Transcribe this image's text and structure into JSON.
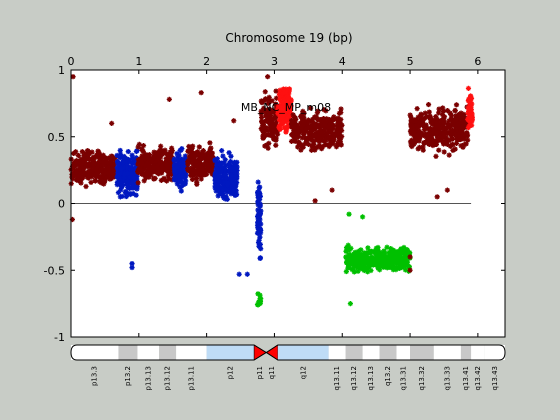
{
  "chart_data": {
    "type": "scatter",
    "title": "Chromosome 19 (bp)",
    "annotation": "MB_NC_MP_m08",
    "xlabel": "",
    "ylabel": "",
    "xlim": [
      0,
      6.4
    ],
    "ylim": [
      -1,
      1
    ],
    "x_ticks": [
      0,
      1,
      2,
      3,
      4,
      5,
      6
    ],
    "x_tick_labels": [
      "0",
      "1",
      "2",
      "3",
      "4",
      "5",
      "6"
    ],
    "x_axis_position": "top",
    "y_ticks": [
      -1,
      -0.5,
      0,
      0.5,
      1
    ],
    "y_tick_labels": [
      "-1",
      "-0.5",
      "0",
      "0.5",
      "1"
    ],
    "baseline_y": 0,
    "baseline_x_range": [
      0,
      5.9
    ],
    "grid": false,
    "legend": "none",
    "colors": {
      "dark_red": "#7a0000",
      "red": "#ff1010",
      "blue": "#0018c0",
      "green": "#00c000",
      "baseline": "#555555",
      "background": "#c8ccc6"
    },
    "series": [
      {
        "color": "dark_red",
        "x_range": [
          0.0,
          0.65
        ],
        "y_center": 0.27,
        "y_spread": 0.17,
        "count": 260
      },
      {
        "color": "blue",
        "x_range": [
          0.68,
          0.98
        ],
        "y_center": 0.22,
        "y_spread": 0.22,
        "count": 180
      },
      {
        "color": "dark_red",
        "x_range": [
          0.98,
          1.5
        ],
        "y_center": 0.3,
        "y_spread": 0.17,
        "count": 220
      },
      {
        "color": "blue",
        "x_range": [
          1.52,
          1.72
        ],
        "y_center": 0.25,
        "y_spread": 0.2,
        "count": 110
      },
      {
        "color": "dark_red",
        "x_range": [
          1.72,
          2.1
        ],
        "y_center": 0.3,
        "y_spread": 0.17,
        "count": 170
      },
      {
        "color": "blue",
        "x_range": [
          2.12,
          2.45
        ],
        "y_center": 0.2,
        "y_spread": 0.22,
        "count": 200
      },
      {
        "color": "blue",
        "x_range": [
          2.75,
          2.8
        ],
        "y_center": -0.1,
        "y_spread": 0.38,
        "count": 60
      },
      {
        "color": "green",
        "x_range": [
          2.75,
          2.8
        ],
        "y_center": -0.72,
        "y_spread": 0.08,
        "count": 10
      },
      {
        "color": "dark_red",
        "x_range": [
          2.8,
          3.05
        ],
        "y_center": 0.62,
        "y_spread": 0.28,
        "count": 110
      },
      {
        "color": "red",
        "x_range": [
          3.05,
          3.25
        ],
        "y_center": 0.72,
        "y_spread": 0.25,
        "count": 130
      },
      {
        "color": "dark_red",
        "x_range": [
          3.25,
          4.0
        ],
        "y_center": 0.55,
        "y_spread": 0.2,
        "count": 280
      },
      {
        "color": "green",
        "x_range": [
          4.05,
          5.0
        ],
        "y_center": -0.42,
        "y_spread": 0.12,
        "count": 360
      },
      {
        "color": "dark_red",
        "x_range": [
          5.0,
          5.85
        ],
        "y_center": 0.55,
        "y_spread": 0.22,
        "count": 330
      },
      {
        "color": "red",
        "x_range": [
          5.85,
          5.92
        ],
        "y_center": 0.7,
        "y_spread": 0.22,
        "count": 40
      }
    ],
    "outliers": [
      {
        "x": 0.03,
        "y": 0.95,
        "color": "dark_red"
      },
      {
        "x": 0.02,
        "y": -0.12,
        "color": "dark_red"
      },
      {
        "x": 0.9,
        "y": -0.48,
        "color": "blue"
      },
      {
        "x": 0.9,
        "y": -0.45,
        "color": "blue"
      },
      {
        "x": 0.6,
        "y": 0.6,
        "color": "dark_red"
      },
      {
        "x": 1.92,
        "y": 0.83,
        "color": "dark_red"
      },
      {
        "x": 1.45,
        "y": 0.78,
        "color": "dark_red"
      },
      {
        "x": 2.4,
        "y": 0.62,
        "color": "dark_red"
      },
      {
        "x": 2.48,
        "y": -0.53,
        "color": "blue"
      },
      {
        "x": 2.6,
        "y": -0.53,
        "color": "blue"
      },
      {
        "x": 2.9,
        "y": 0.95,
        "color": "dark_red"
      },
      {
        "x": 3.6,
        "y": 0.02,
        "color": "dark_red"
      },
      {
        "x": 3.85,
        "y": 0.1,
        "color": "dark_red"
      },
      {
        "x": 4.1,
        "y": -0.08,
        "color": "green"
      },
      {
        "x": 4.12,
        "y": -0.75,
        "color": "green"
      },
      {
        "x": 4.3,
        "y": -0.1,
        "color": "green"
      },
      {
        "x": 5.0,
        "y": -0.5,
        "color": "dark_red"
      },
      {
        "x": 5.0,
        "y": -0.4,
        "color": "dark_red"
      },
      {
        "x": 5.4,
        "y": 0.05,
        "color": "dark_red"
      },
      {
        "x": 5.55,
        "y": 0.1,
        "color": "dark_red"
      }
    ],
    "ideogram": {
      "bands": [
        {
          "label": "p13.3",
          "range": [
            0,
            0.7
          ],
          "stain": "white"
        },
        {
          "label": "p13.2",
          "range": [
            0.7,
            0.98
          ],
          "stain": "gray"
        },
        {
          "label": "p13.13",
          "range": [
            0.98,
            1.3
          ],
          "stain": "white"
        },
        {
          "label": "p13.12",
          "range": [
            1.3,
            1.55
          ],
          "stain": "gray"
        },
        {
          "label": "p13.11",
          "range": [
            1.55,
            2.0
          ],
          "stain": "white"
        },
        {
          "label": "p12",
          "range": [
            2.0,
            2.7
          ],
          "stain": "lightblue"
        },
        {
          "label": "p11",
          "range": [
            2.7,
            2.88
          ],
          "stain": "centromere"
        },
        {
          "label": "q11",
          "range": [
            2.88,
            3.05
          ],
          "stain": "centromere"
        },
        {
          "label": "q12",
          "range": [
            3.05,
            3.8
          ],
          "stain": "lightblue"
        },
        {
          "label": "q13.11",
          "range": [
            3.8,
            4.05
          ],
          "stain": "white"
        },
        {
          "label": "q13.12",
          "range": [
            4.05,
            4.3
          ],
          "stain": "gray"
        },
        {
          "label": "q13.13",
          "range": [
            4.3,
            4.55
          ],
          "stain": "white"
        },
        {
          "label": "q13.2",
          "range": [
            4.55,
            4.8
          ],
          "stain": "gray"
        },
        {
          "label": "q13.31",
          "range": [
            4.8,
            5.0
          ],
          "stain": "white"
        },
        {
          "label": "q13.32",
          "range": [
            5.0,
            5.35
          ],
          "stain": "gray"
        },
        {
          "label": "q13.33",
          "range": [
            5.35,
            5.75
          ],
          "stain": "white"
        },
        {
          "label": "q13.41",
          "range": [
            5.75,
            5.9
          ],
          "stain": "gray"
        },
        {
          "label": "q13.42",
          "range": [
            5.9,
            6.1
          ],
          "stain": "white"
        },
        {
          "label": "q13.43",
          "range": [
            6.1,
            6.4
          ],
          "stain": "white"
        }
      ],
      "colors": {
        "white": "#ffffff",
        "gray": "#c8c8c8",
        "lightblue": "#bfdcf6",
        "centromere": "#ff0000"
      }
    }
  }
}
